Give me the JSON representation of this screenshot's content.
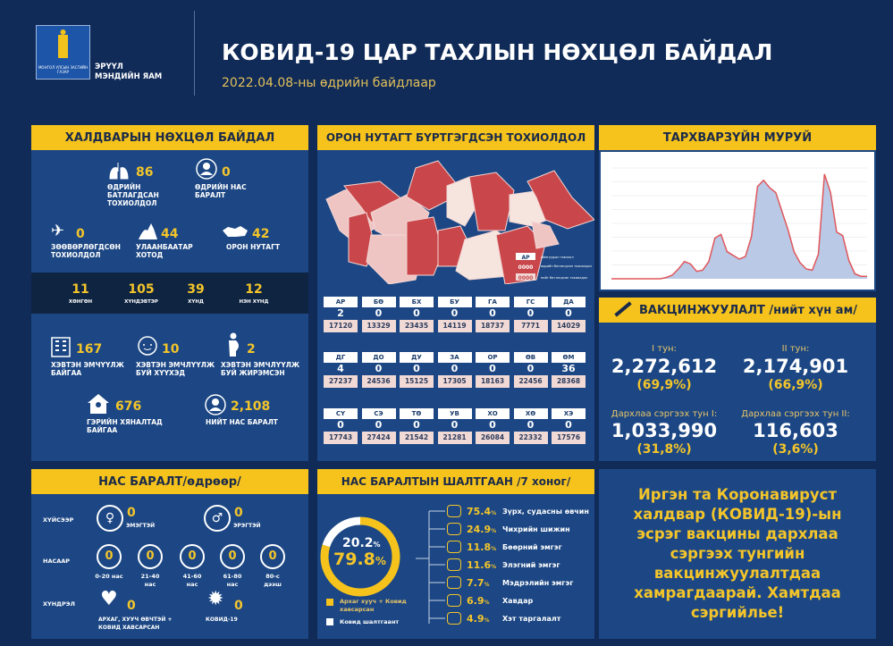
{
  "header": {
    "logo_text": "МОНГОЛ УЛСЫН ЗАСГИЙН ГАЗАР",
    "ministry": "ЭРҮҮЛ\nМЭНДИЙН ЯАМ",
    "title": "КОВИД-19 ЦАР ТАХЛЫН НӨХЦӨЛ БАЙДАЛ",
    "subtitle": "2022.04.08-ны өдрийн байдлаар"
  },
  "infection": {
    "title": "ХАЛДВАРЫН НӨХЦӨЛ БАЙДАЛ",
    "daily_cases": {
      "value": "86",
      "label": "ӨДРИЙН\nБАТЛАГДСАН\nТОХИОЛДОЛ"
    },
    "daily_deaths": {
      "value": "0",
      "label": "ӨДРИЙН НАС\nБАРАЛТ"
    },
    "imported": {
      "value": "0",
      "label": "ЗӨӨВӨРЛӨГДСӨН\nТОХИОЛДОЛ"
    },
    "ulaanbaatar": {
      "value": "44",
      "label": "УЛААНБААТАР\nХОТОД"
    },
    "provinces": {
      "value": "42",
      "label": "ОРОН НУТАГТ"
    },
    "severity": [
      {
        "value": "11",
        "label": "ХӨНГӨН"
      },
      {
        "value": "105",
        "label": "ХҮНДЭВТЭР"
      },
      {
        "value": "39",
        "label": "ХҮНД"
      },
      {
        "value": "12",
        "label": "НЭН ХҮНД"
      }
    ],
    "hospitalized": {
      "value": "167",
      "label": "ХЭВТЭН ЭМЧҮҮЛЖ\nБАЙГАА"
    },
    "children": {
      "value": "10",
      "label": "ХЭВТЭН ЭМЧЛҮҮЛЖ\nБУЙ ХҮҮХЭД"
    },
    "pregnant": {
      "value": "2",
      "label": "ХЭВТЭН ЭМЧЛҮҮЛЖ\nБУЙ ЖИРЭМСЭН"
    },
    "home_care": {
      "value": "676",
      "label": "ГЭРИЙН ХЯНАЛТАД\nБАЙГАА"
    },
    "total_deaths": {
      "value": "2,108",
      "label": "НИЙТ НАС БАРАЛТ"
    }
  },
  "regional": {
    "title": "ОРОН НУТАГТ БҮРТГЭГДСЭН ТОХИОЛДОЛ",
    "legend": {
      "code": "АР",
      "code_label": "аймгуудын товчлол",
      "today": "0000",
      "today_label": "өдрийн батлагдсан тохиолдол",
      "total": "0000",
      "total_label": "нийт батлагдсан тохиолдол"
    },
    "colors": {
      "high": "#c9474b",
      "mid": "#eec3c2",
      "low": "#f6e4df"
    },
    "rows": [
      [
        {
          "code": "АР",
          "today": "2",
          "total": "17120"
        },
        {
          "code": "БӨ",
          "today": "0",
          "total": "13329"
        },
        {
          "code": "БХ",
          "today": "0",
          "total": "23435"
        },
        {
          "code": "БУ",
          "today": "0",
          "total": "14119"
        },
        {
          "code": "ГА",
          "today": "0",
          "total": "18737"
        },
        {
          "code": "ГС",
          "today": "0",
          "total": "7771"
        },
        {
          "code": "ДА",
          "today": "0",
          "total": "14029"
        }
      ],
      [
        {
          "code": "ДГ",
          "today": "4",
          "total": "27237"
        },
        {
          "code": "ДО",
          "today": "0",
          "total": "24536"
        },
        {
          "code": "ДУ",
          "today": "0",
          "total": "15125"
        },
        {
          "code": "ЗА",
          "today": "0",
          "total": "17305"
        },
        {
          "code": "ОР",
          "today": "0",
          "total": "18163"
        },
        {
          "code": "ӨВ",
          "today": "0",
          "total": "22456"
        },
        {
          "code": "ӨМ",
          "today": "36",
          "total": "28368"
        }
      ],
      [
        {
          "code": "СҮ",
          "today": "0",
          "total": "17743"
        },
        {
          "code": "СЭ",
          "today": "0",
          "total": "27424"
        },
        {
          "code": "ТӨ",
          "today": "0",
          "total": "21542"
        },
        {
          "code": "УВ",
          "today": "0",
          "total": "21281"
        },
        {
          "code": "ХО",
          "today": "0",
          "total": "26084"
        },
        {
          "code": "ХӨ",
          "today": "0",
          "total": "22332"
        },
        {
          "code": "ХЭ",
          "today": "0",
          "total": "17576"
        }
      ]
    ]
  },
  "curve": {
    "title": "ТАРХВАРЗҮЙН МУРУЙ",
    "chart_data": {
      "type": "area",
      "grid": true,
      "colors": {
        "bars": "#b9c9e6",
        "line": "#e0575c"
      },
      "values": [
        0,
        0,
        0,
        0,
        0,
        0,
        0,
        0,
        0,
        1,
        3,
        8,
        14,
        12,
        6,
        7,
        14,
        33,
        36,
        22,
        19,
        16,
        18,
        34,
        75,
        80,
        74,
        70,
        55,
        40,
        22,
        13,
        8,
        7,
        20,
        85,
        70,
        38,
        35,
        15,
        4,
        2,
        2
      ]
    }
  },
  "vaccination": {
    "title": "ВАКЦИНЖУУЛАЛТ /нийт хүн ам/",
    "dose1": {
      "label": "I тун:",
      "value": "2,272,612",
      "pct": "(69,9%)"
    },
    "dose2": {
      "label": "II тун:",
      "value": "2,174,901",
      "pct": "(66,9%)"
    },
    "booster1": {
      "label": "Дархлаа сэргээх тун I:",
      "value": "1,033,990",
      "pct": "(31,8%)"
    },
    "booster2": {
      "label": "Дархлаа сэргээх тун II:",
      "value": "116,603",
      "pct": "(3,6%)"
    }
  },
  "deaths_daily": {
    "title": "НАС БАРАЛТ/өдрөөр/",
    "by_sex_label": "ХҮЙСЭЭР",
    "female": {
      "value": "0",
      "label": "ЭМЭГТЭЙ"
    },
    "male": {
      "value": "0",
      "label": "ЭРЭГТЭЙ"
    },
    "by_age_label": "НАСААР",
    "ages": [
      {
        "value": "0",
        "label": "0-20 нас"
      },
      {
        "value": "0",
        "label": "21-40\nнас"
      },
      {
        "value": "0",
        "label": "41-60\nнас"
      },
      {
        "value": "0",
        "label": "61-80\nнас"
      },
      {
        "value": "0",
        "label": "80-с\nдээш"
      }
    ],
    "complication_label": "ХҮНДРЭЛ",
    "chronic": {
      "value": "0",
      "label": "АРХАГ, ХУУЧ ӨВЧТЭЙ +\nКОВИД ХАВСАРСАН"
    },
    "covid": {
      "value": "0",
      "label": "КОВИД-19"
    }
  },
  "death_causes": {
    "title": "НАС БАРАЛТЫН ШАЛТГААН /7 хоног/",
    "donut": {
      "covid_only_pct": 20.2,
      "chronic_plus_covid_pct": 79.8,
      "covid_only_text": "20.2",
      "chronic_text": "79.8",
      "colors": {
        "chronic": "#f6c31c",
        "covid": "#ffffff"
      }
    },
    "legend": {
      "chronic": "Архаг хууч + Ковид хавсарсан",
      "covid": "Ковид шалтгаант"
    },
    "causes": [
      {
        "pct": "75.4",
        "label": "Зүрх, судасны өвчин",
        "icon": "heart-icon"
      },
      {
        "pct": "24.9",
        "label": "Чихрийн шижин",
        "icon": "syringe-icon"
      },
      {
        "pct": "11.8",
        "label": "Бөөрний эмгэг",
        "icon": "kidney-icon"
      },
      {
        "pct": "11.6",
        "label": "Элэгний эмгэг",
        "icon": "liver-icon"
      },
      {
        "pct": "7.7",
        "label": "Мэдрэлийн эмгэг",
        "icon": "brain-icon"
      },
      {
        "pct": "6.9",
        "label": "Хавдар",
        "icon": "cells-icon"
      },
      {
        "pct": "4.9",
        "label": "Хэт таргалалт",
        "icon": "body-icon"
      }
    ],
    "pct_sign": "%"
  },
  "message": "Иргэн та Коронавируст халдвар (КОВИД-19)-ын эсрэг вакцины дархлаа сэргээх тунгийн вакцинжуулалтдаа хамрагдаарай. Хамтдаа сэргийлье!"
}
